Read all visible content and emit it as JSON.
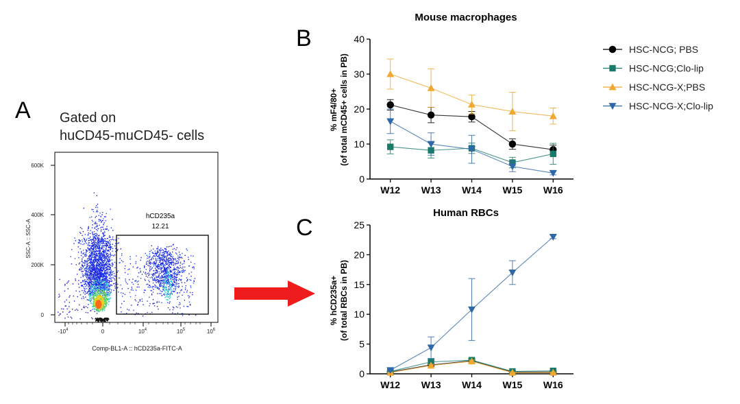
{
  "panel_labels": {
    "a": "A",
    "b": "B",
    "c": "C"
  },
  "flow": {
    "gate_title_1": "Gated on",
    "gate_title_2": "huCD45-muCD45- cells",
    "y_axis_label": "SSC-A :: SSC-A",
    "x_axis_label": "Comp-BL1-A :: hCD235a-FITC-A",
    "y_ticks": [
      "600K",
      "400K",
      "200K",
      "0"
    ],
    "x_ticks": [
      {
        "base": "-10",
        "exp": "4"
      },
      {
        "base": "0",
        "exp": ""
      },
      {
        "base": "10",
        "exp": "4"
      },
      {
        "base": "10",
        "exp": "5"
      },
      {
        "base": "10",
        "exp": "6"
      }
    ],
    "gate_name": "hCD235a",
    "gate_value": "12.21"
  },
  "legend": [
    "HSC-NCG; PBS",
    "HSC-NCG;Clo-lip",
    "HSC-NCG-X;PBS",
    "HSC-NCG-X;Clo-lip"
  ],
  "chart_data": [
    {
      "type": "line",
      "title": "Mouse macrophages",
      "xlabel": "",
      "ylabel": "% mF4/80+",
      "ylabel2": "(of total mCD45+ cells in PB)",
      "categories": [
        "W12",
        "W13",
        "W14",
        "W15",
        "W16"
      ],
      "ylim": [
        0,
        40
      ],
      "yticks": [
        0,
        10,
        20,
        30,
        40
      ],
      "series": [
        {
          "name": "HSC-NCG; PBS",
          "color": "#000000",
          "marker": "circle",
          "values": [
            21.2,
            18.3,
            17.8,
            10.0,
            8.4
          ],
          "errors": [
            1.5,
            2.2,
            1.5,
            1.5,
            1.3
          ]
        },
        {
          "name": "HSC-NCG;Clo-lip",
          "color": "#1a7a6a",
          "marker": "square",
          "values": [
            9.2,
            8.2,
            8.8,
            4.7,
            7.2
          ],
          "errors": [
            2.0,
            2.2,
            1.5,
            1.5,
            3.0
          ]
        },
        {
          "name": "HSC-NCG-X;PBS",
          "color": "#f0a830",
          "marker": "triangle-up",
          "values": [
            30.0,
            26.0,
            21.3,
            19.3,
            18.0
          ],
          "errors": [
            4.3,
            5.5,
            2.7,
            5.5,
            2.3
          ]
        },
        {
          "name": "HSC-NCG-X;Clo-lip",
          "color": "#2f68a8",
          "marker": "triangle-down",
          "values": [
            16.5,
            10.0,
            8.5,
            3.6,
            1.7
          ],
          "errors": [
            3.5,
            3.2,
            4.0,
            1.5,
            0.5
          ]
        }
      ]
    },
    {
      "type": "line",
      "title": "Human RBCs",
      "xlabel": "",
      "ylabel": "% hCD235a+",
      "ylabel2": "(of total RBCs in PB)",
      "categories": [
        "W12",
        "W13",
        "W14",
        "W15",
        "W16"
      ],
      "ylim": [
        0,
        25
      ],
      "yticks": [
        0,
        5,
        10,
        15,
        20,
        25
      ],
      "series": [
        {
          "name": "HSC-NCG; PBS",
          "color": "#000000",
          "marker": "circle",
          "values": [
            0.3,
            1.5,
            2.2,
            0.3,
            0.3
          ],
          "errors": [
            0.1,
            0.2,
            0.3,
            0.1,
            0.1
          ]
        },
        {
          "name": "HSC-NCG;Clo-lip",
          "color": "#1a7a6a",
          "marker": "square",
          "values": [
            0.4,
            2.0,
            2.3,
            0.4,
            0.5
          ],
          "errors": [
            0.1,
            0.3,
            0.3,
            0.1,
            0.1
          ]
        },
        {
          "name": "HSC-NCG-X;PBS",
          "color": "#f0a830",
          "marker": "triangle-up",
          "values": [
            0.2,
            1.4,
            2.1,
            0.2,
            0.2
          ],
          "errors": [
            0.1,
            0.2,
            0.2,
            0.1,
            0.1
          ]
        },
        {
          "name": "HSC-NCG-X;Clo-lip",
          "color": "#2f68a8",
          "marker": "triangle-down",
          "values": [
            0.6,
            4.4,
            10.8,
            17.0,
            23.0
          ],
          "errors": [
            0.2,
            1.8,
            5.2,
            2.0,
            0.3
          ]
        }
      ]
    }
  ],
  "arrow_color": "#ee1c1c"
}
